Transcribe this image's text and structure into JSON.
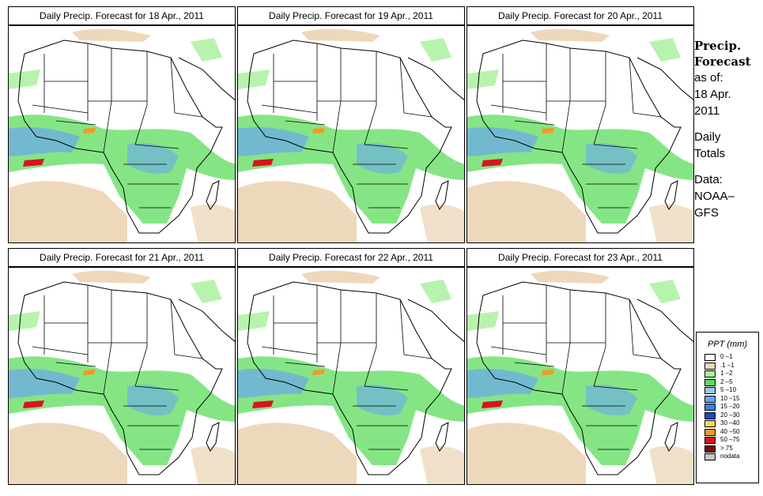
{
  "panels": [
    {
      "title": "Daily Precip. Forecast for  18 Apr., 2011"
    },
    {
      "title": "Daily Precip. Forecast for  19 Apr., 2011"
    },
    {
      "title": "Daily Precip. Forecast for  20 Apr., 2011"
    },
    {
      "title": "Daily Precip. Forecast for  21 Apr., 2011"
    },
    {
      "title": "Daily Precip. Forecast for  22 Apr., 2011"
    },
    {
      "title": "Daily Precip. Forecast for  23 Apr., 2011"
    }
  ],
  "sidebar": {
    "title_line1": "Precip.",
    "title_line2": "Forecast",
    "asof_label": "as of:",
    "asof_date_line1": "18 Apr.",
    "asof_date_line2": "2011",
    "totals_line1": "Daily",
    "totals_line2": "Totals",
    "source_line1": "Data:",
    "source_line2": "NOAA–",
    "source_line3": "GFS"
  },
  "legend": {
    "title": "PPT (mm)",
    "items": [
      {
        "label": "0 –1",
        "color": "#ffffff"
      },
      {
        "label": ".1 –1",
        "color": "#eed8bb"
      },
      {
        "label": "1 –2",
        "color": "#a6f09a"
      },
      {
        "label": "2 –5",
        "color": "#5cdc5c"
      },
      {
        "label": "5 –10",
        "color": "#9ec8f2"
      },
      {
        "label": "10 –15",
        "color": "#6aa6ee"
      },
      {
        "label": "15 –20",
        "color": "#3c7ee6"
      },
      {
        "label": "20 –30",
        "color": "#1a48cc"
      },
      {
        "label": "30 –40",
        "color": "#f5d85a"
      },
      {
        "label": "40 –50",
        "color": "#f59a1e"
      },
      {
        "label": "50 –75",
        "color": "#d8141e"
      },
      {
        "label": "> 75",
        "color": "#7a0a0a"
      },
      {
        "label": "nodata",
        "color": "#c8c8c8"
      }
    ]
  }
}
